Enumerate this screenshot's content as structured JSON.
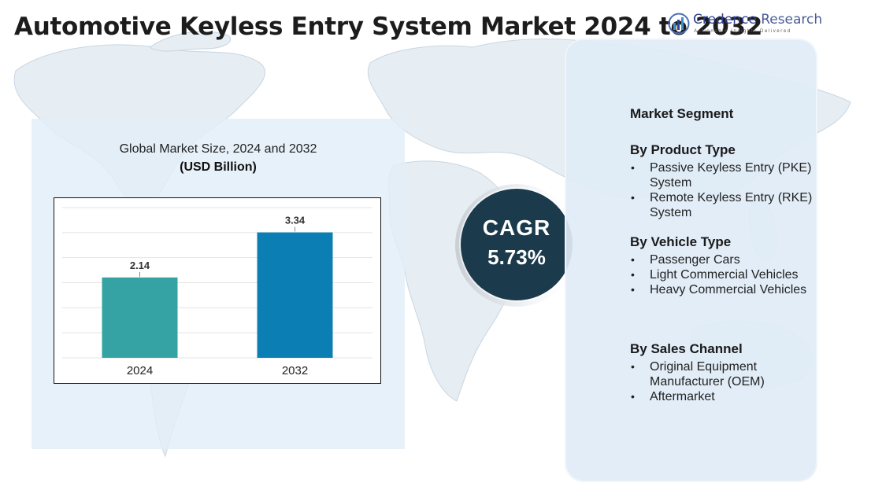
{
  "title": "Automotive Keyless Entry System Market 2024 to 2032",
  "logo": {
    "icon": "bar-globe-icon",
    "name_part1": "Credence",
    "name_part2": "Research",
    "tagline": "Actionable Insights Delivered"
  },
  "chart_data": {
    "type": "bar",
    "title": "Global Market Size, 2024 and 2032",
    "ylabel": "(USD Billion)",
    "xlabel": "",
    "categories": [
      "2024",
      "2032"
    ],
    "values": [
      2.14,
      3.34
    ],
    "value_labels": [
      "2.14",
      "3.34"
    ],
    "ylim": [
      0,
      4
    ],
    "grid": true,
    "colors": [
      "#35a3a3",
      "#0b7fb3"
    ]
  },
  "cagr": {
    "label": "CAGR",
    "value": "5.73%"
  },
  "segments": {
    "heading": "Market Segment",
    "groups": [
      {
        "title": "By Product Type",
        "items": [
          "Passive Keyless Entry (PKE) System",
          "Remote Keyless Entry (RKE) System"
        ]
      },
      {
        "title": "By Vehicle Type",
        "items": [
          "Passenger Cars",
          "Light Commercial Vehicles",
          "Heavy Commercial Vehicles"
        ]
      },
      {
        "title": "By Sales Channel",
        "items": [
          "Original Equipment Manufacturer (OEM)",
          "Aftermarket"
        ]
      }
    ]
  },
  "colors": {
    "cagr_circle": "#1b3a4b",
    "panel": "#e2eef8",
    "map": "#e3ebf2"
  }
}
